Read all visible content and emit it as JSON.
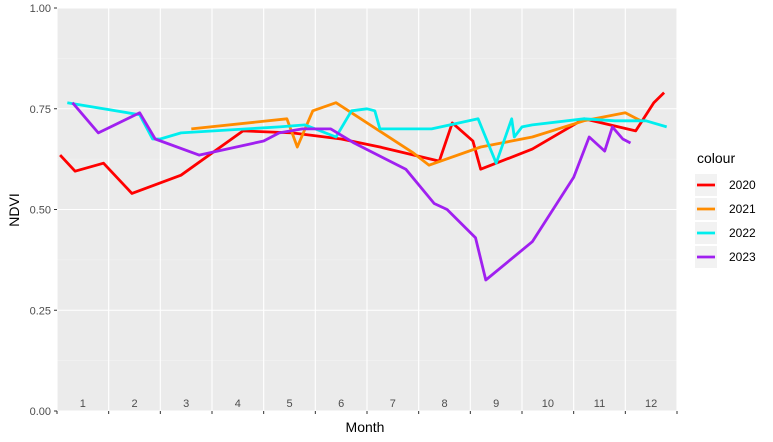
{
  "chart_data": {
    "type": "line",
    "xlabel": "Month",
    "ylabel": "NDVI",
    "xlim": [
      1,
      13
    ],
    "ylim": [
      0,
      1
    ],
    "grid": true,
    "legend_title": "colour",
    "legend_position": "right",
    "x_tick_labels": [
      "1",
      "2",
      "3",
      "4",
      "5",
      "6",
      "7",
      "8",
      "9",
      "10",
      "11",
      "12"
    ],
    "y_ticks": [
      0,
      0.25,
      0.5,
      0.75,
      1.0
    ],
    "y_tick_labels": [
      "0.00",
      "0.25",
      "0.50",
      "0.75",
      "1.00"
    ],
    "series": [
      {
        "name": "2020",
        "color": "#ff0000",
        "x": [
          1.06,
          1.35,
          1.9,
          2.45,
          3.4,
          4.6,
          5.55,
          6.5,
          7.25,
          8.4,
          8.65,
          9.05,
          9.2,
          10.2,
          11.2,
          12.2,
          12.55,
          12.75
        ],
        "y": [
          0.635,
          0.595,
          0.615,
          0.54,
          0.585,
          0.695,
          0.69,
          0.675,
          0.655,
          0.62,
          0.715,
          0.67,
          0.6,
          0.65,
          0.725,
          0.695,
          0.765,
          0.79
        ]
      },
      {
        "name": "2021",
        "color": "#ff8c00",
        "x": [
          3.6,
          5.45,
          5.65,
          5.95,
          6.4,
          7.9,
          8.2,
          9.2,
          10.2,
          11.2,
          12.0,
          12.3
        ],
        "y": [
          0.7,
          0.725,
          0.655,
          0.745,
          0.765,
          0.64,
          0.61,
          0.655,
          0.68,
          0.72,
          0.74,
          0.72
        ]
      },
      {
        "name": "2022",
        "color": "#00eeee",
        "x": [
          1.2,
          2.6,
          2.85,
          3.0,
          3.4,
          5.3,
          5.8,
          6.4,
          6.7,
          7.0,
          7.15,
          7.25,
          8.25,
          9.15,
          9.5,
          9.8,
          9.85,
          10.0,
          10.2,
          11.2,
          11.8,
          12.4,
          12.8
        ],
        "y": [
          0.765,
          0.735,
          0.675,
          0.675,
          0.69,
          0.705,
          0.71,
          0.68,
          0.745,
          0.75,
          0.745,
          0.7,
          0.7,
          0.725,
          0.615,
          0.725,
          0.68,
          0.705,
          0.71,
          0.725,
          0.72,
          0.72,
          0.705
        ]
      },
      {
        "name": "2023",
        "color": "#a020f0",
        "x": [
          1.3,
          1.8,
          2.6,
          2.9,
          3.75,
          5.0,
          5.3,
          5.75,
          6.3,
          6.75,
          7.75,
          8.3,
          8.55,
          9.1,
          9.3,
          10.2,
          11.0,
          11.3,
          11.6,
          11.75,
          11.95,
          12.1
        ],
        "y": [
          0.765,
          0.69,
          0.74,
          0.675,
          0.635,
          0.67,
          0.69,
          0.7,
          0.7,
          0.665,
          0.6,
          0.515,
          0.5,
          0.43,
          0.325,
          0.42,
          0.58,
          0.68,
          0.645,
          0.705,
          0.675,
          0.665
        ]
      }
    ]
  }
}
